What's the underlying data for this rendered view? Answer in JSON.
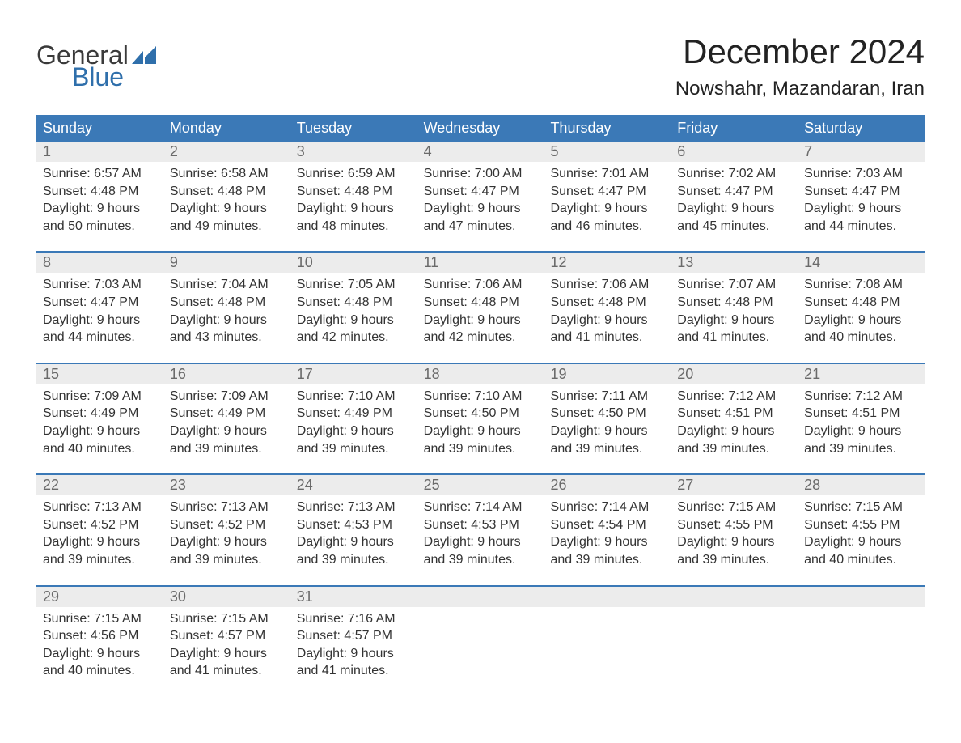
{
  "logo": {
    "text_general": "General",
    "text_blue": "Blue"
  },
  "title": "December 2024",
  "location": "Nowshahr, Mazandaran, Iran",
  "colors": {
    "header_bg": "#3b79b7",
    "header_text": "#ffffff",
    "date_bg": "#ececec",
    "date_text": "#6a6a6a",
    "body_text": "#333333",
    "rule": "#3b79b7",
    "logo_general": "#3a3a3a",
    "logo_blue": "#2f6fab"
  },
  "day_names": [
    "Sunday",
    "Monday",
    "Tuesday",
    "Wednesday",
    "Thursday",
    "Friday",
    "Saturday"
  ],
  "weeks": [
    [
      {
        "date": "1",
        "sunrise": "Sunrise: 6:57 AM",
        "sunset": "Sunset: 4:48 PM",
        "day1": "Daylight: 9 hours",
        "day2": "and 50 minutes."
      },
      {
        "date": "2",
        "sunrise": "Sunrise: 6:58 AM",
        "sunset": "Sunset: 4:48 PM",
        "day1": "Daylight: 9 hours",
        "day2": "and 49 minutes."
      },
      {
        "date": "3",
        "sunrise": "Sunrise: 6:59 AM",
        "sunset": "Sunset: 4:48 PM",
        "day1": "Daylight: 9 hours",
        "day2": "and 48 minutes."
      },
      {
        "date": "4",
        "sunrise": "Sunrise: 7:00 AM",
        "sunset": "Sunset: 4:47 PM",
        "day1": "Daylight: 9 hours",
        "day2": "and 47 minutes."
      },
      {
        "date": "5",
        "sunrise": "Sunrise: 7:01 AM",
        "sunset": "Sunset: 4:47 PM",
        "day1": "Daylight: 9 hours",
        "day2": "and 46 minutes."
      },
      {
        "date": "6",
        "sunrise": "Sunrise: 7:02 AM",
        "sunset": "Sunset: 4:47 PM",
        "day1": "Daylight: 9 hours",
        "day2": "and 45 minutes."
      },
      {
        "date": "7",
        "sunrise": "Sunrise: 7:03 AM",
        "sunset": "Sunset: 4:47 PM",
        "day1": "Daylight: 9 hours",
        "day2": "and 44 minutes."
      }
    ],
    [
      {
        "date": "8",
        "sunrise": "Sunrise: 7:03 AM",
        "sunset": "Sunset: 4:47 PM",
        "day1": "Daylight: 9 hours",
        "day2": "and 44 minutes."
      },
      {
        "date": "9",
        "sunrise": "Sunrise: 7:04 AM",
        "sunset": "Sunset: 4:48 PM",
        "day1": "Daylight: 9 hours",
        "day2": "and 43 minutes."
      },
      {
        "date": "10",
        "sunrise": "Sunrise: 7:05 AM",
        "sunset": "Sunset: 4:48 PM",
        "day1": "Daylight: 9 hours",
        "day2": "and 42 minutes."
      },
      {
        "date": "11",
        "sunrise": "Sunrise: 7:06 AM",
        "sunset": "Sunset: 4:48 PM",
        "day1": "Daylight: 9 hours",
        "day2": "and 42 minutes."
      },
      {
        "date": "12",
        "sunrise": "Sunrise: 7:06 AM",
        "sunset": "Sunset: 4:48 PM",
        "day1": "Daylight: 9 hours",
        "day2": "and 41 minutes."
      },
      {
        "date": "13",
        "sunrise": "Sunrise: 7:07 AM",
        "sunset": "Sunset: 4:48 PM",
        "day1": "Daylight: 9 hours",
        "day2": "and 41 minutes."
      },
      {
        "date": "14",
        "sunrise": "Sunrise: 7:08 AM",
        "sunset": "Sunset: 4:48 PM",
        "day1": "Daylight: 9 hours",
        "day2": "and 40 minutes."
      }
    ],
    [
      {
        "date": "15",
        "sunrise": "Sunrise: 7:09 AM",
        "sunset": "Sunset: 4:49 PM",
        "day1": "Daylight: 9 hours",
        "day2": "and 40 minutes."
      },
      {
        "date": "16",
        "sunrise": "Sunrise: 7:09 AM",
        "sunset": "Sunset: 4:49 PM",
        "day1": "Daylight: 9 hours",
        "day2": "and 39 minutes."
      },
      {
        "date": "17",
        "sunrise": "Sunrise: 7:10 AM",
        "sunset": "Sunset: 4:49 PM",
        "day1": "Daylight: 9 hours",
        "day2": "and 39 minutes."
      },
      {
        "date": "18",
        "sunrise": "Sunrise: 7:10 AM",
        "sunset": "Sunset: 4:50 PM",
        "day1": "Daylight: 9 hours",
        "day2": "and 39 minutes."
      },
      {
        "date": "19",
        "sunrise": "Sunrise: 7:11 AM",
        "sunset": "Sunset: 4:50 PM",
        "day1": "Daylight: 9 hours",
        "day2": "and 39 minutes."
      },
      {
        "date": "20",
        "sunrise": "Sunrise: 7:12 AM",
        "sunset": "Sunset: 4:51 PM",
        "day1": "Daylight: 9 hours",
        "day2": "and 39 minutes."
      },
      {
        "date": "21",
        "sunrise": "Sunrise: 7:12 AM",
        "sunset": "Sunset: 4:51 PM",
        "day1": "Daylight: 9 hours",
        "day2": "and 39 minutes."
      }
    ],
    [
      {
        "date": "22",
        "sunrise": "Sunrise: 7:13 AM",
        "sunset": "Sunset: 4:52 PM",
        "day1": "Daylight: 9 hours",
        "day2": "and 39 minutes."
      },
      {
        "date": "23",
        "sunrise": "Sunrise: 7:13 AM",
        "sunset": "Sunset: 4:52 PM",
        "day1": "Daylight: 9 hours",
        "day2": "and 39 minutes."
      },
      {
        "date": "24",
        "sunrise": "Sunrise: 7:13 AM",
        "sunset": "Sunset: 4:53 PM",
        "day1": "Daylight: 9 hours",
        "day2": "and 39 minutes."
      },
      {
        "date": "25",
        "sunrise": "Sunrise: 7:14 AM",
        "sunset": "Sunset: 4:53 PM",
        "day1": "Daylight: 9 hours",
        "day2": "and 39 minutes."
      },
      {
        "date": "26",
        "sunrise": "Sunrise: 7:14 AM",
        "sunset": "Sunset: 4:54 PM",
        "day1": "Daylight: 9 hours",
        "day2": "and 39 minutes."
      },
      {
        "date": "27",
        "sunrise": "Sunrise: 7:15 AM",
        "sunset": "Sunset: 4:55 PM",
        "day1": "Daylight: 9 hours",
        "day2": "and 39 minutes."
      },
      {
        "date": "28",
        "sunrise": "Sunrise: 7:15 AM",
        "sunset": "Sunset: 4:55 PM",
        "day1": "Daylight: 9 hours",
        "day2": "and 40 minutes."
      }
    ],
    [
      {
        "date": "29",
        "sunrise": "Sunrise: 7:15 AM",
        "sunset": "Sunset: 4:56 PM",
        "day1": "Daylight: 9 hours",
        "day2": "and 40 minutes."
      },
      {
        "date": "30",
        "sunrise": "Sunrise: 7:15 AM",
        "sunset": "Sunset: 4:57 PM",
        "day1": "Daylight: 9 hours",
        "day2": "and 41 minutes."
      },
      {
        "date": "31",
        "sunrise": "Sunrise: 7:16 AM",
        "sunset": "Sunset: 4:57 PM",
        "day1": "Daylight: 9 hours",
        "day2": "and 41 minutes."
      },
      {
        "date": "",
        "sunrise": "",
        "sunset": "",
        "day1": "",
        "day2": ""
      },
      {
        "date": "",
        "sunrise": "",
        "sunset": "",
        "day1": "",
        "day2": ""
      },
      {
        "date": "",
        "sunrise": "",
        "sunset": "",
        "day1": "",
        "day2": ""
      },
      {
        "date": "",
        "sunrise": "",
        "sunset": "",
        "day1": "",
        "day2": ""
      }
    ]
  ]
}
